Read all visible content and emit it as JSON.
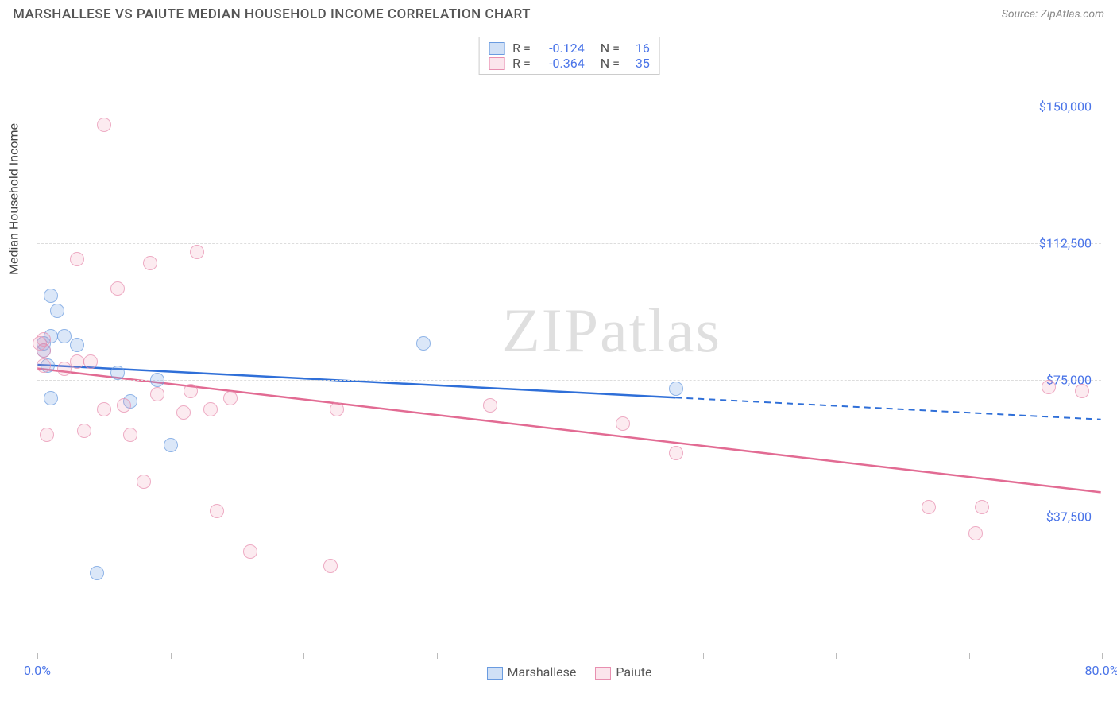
{
  "header": {
    "title": "MARSHALLESE VS PAIUTE MEDIAN HOUSEHOLD INCOME CORRELATION CHART",
    "source": "Source: ZipAtlas.com"
  },
  "watermark": {
    "part1": "ZIP",
    "part2": "atlas"
  },
  "chart": {
    "type": "scatter",
    "y_axis_title": "Median Household Income",
    "background_color": "#ffffff",
    "grid_color": "#dddddd",
    "axis_color": "#bbbbbb",
    "label_color": "#4a74e8",
    "xlim": [
      0,
      80
    ],
    "ylim": [
      0,
      170000
    ],
    "x_ticks": [
      0,
      10,
      20,
      30,
      40,
      50,
      60,
      70,
      80
    ],
    "x_tick_labels_shown": {
      "0": "0.0%",
      "80": "80.0%"
    },
    "y_gridlines": [
      37500,
      75000,
      112500,
      150000
    ],
    "y_tick_labels": {
      "37500": "$37,500",
      "75000": "$75,000",
      "112500": "$112,500",
      "150000": "$150,000"
    },
    "series": [
      {
        "name": "Marshallese",
        "color_fill": "rgba(120,165,230,0.35)",
        "color_border": "#6a9be0",
        "line_color": "#2f6fd8",
        "R": "-0.124",
        "N": "16",
        "points": [
          [
            1.0,
            98000
          ],
          [
            1.5,
            94000
          ],
          [
            1.0,
            87000
          ],
          [
            2.0,
            87000
          ],
          [
            3.0,
            84500
          ],
          [
            0.5,
            85000
          ],
          [
            1.0,
            70000
          ],
          [
            0.8,
            79000
          ],
          [
            6.0,
            77000
          ],
          [
            9.0,
            75000
          ],
          [
            29.0,
            85000
          ],
          [
            48.0,
            72500
          ],
          [
            7.0,
            69000
          ],
          [
            10.0,
            57000
          ],
          [
            4.5,
            22000
          ],
          [
            0.5,
            83000
          ]
        ],
        "trend": {
          "x1": 0,
          "y1": 79000,
          "x2": 80,
          "y2": 64000,
          "solid_until_x": 48
        }
      },
      {
        "name": "Paiute",
        "color_fill": "rgba(240,150,180,0.25)",
        "color_border": "#e88fb0",
        "line_color": "#e26b93",
        "R": "-0.364",
        "N": "35",
        "points": [
          [
            5.0,
            145000
          ],
          [
            3.0,
            108000
          ],
          [
            8.5,
            107000
          ],
          [
            12.0,
            110000
          ],
          [
            6.0,
            100000
          ],
          [
            0.5,
            86000
          ],
          [
            0.5,
            83000
          ],
          [
            0.5,
            79000
          ],
          [
            0.2,
            85000
          ],
          [
            2.0,
            78000
          ],
          [
            3.0,
            80000
          ],
          [
            4.0,
            80000
          ],
          [
            5.0,
            67000
          ],
          [
            3.5,
            61000
          ],
          [
            6.5,
            68000
          ],
          [
            7.0,
            60000
          ],
          [
            8.0,
            47000
          ],
          [
            9.0,
            71000
          ],
          [
            11.5,
            72000
          ],
          [
            11.0,
            66000
          ],
          [
            13.0,
            67000
          ],
          [
            14.5,
            70000
          ],
          [
            13.5,
            39000
          ],
          [
            16.0,
            28000
          ],
          [
            22.5,
            67000
          ],
          [
            22.0,
            24000
          ],
          [
            34.0,
            68000
          ],
          [
            44.0,
            63000
          ],
          [
            48.0,
            55000
          ],
          [
            67.0,
            40000
          ],
          [
            71.0,
            40000
          ],
          [
            70.5,
            33000
          ],
          [
            76.0,
            73000
          ],
          [
            78.5,
            72000
          ],
          [
            0.7,
            60000
          ]
        ],
        "trend": {
          "x1": 0,
          "y1": 78000,
          "x2": 80,
          "y2": 44000,
          "solid_until_x": 80
        }
      }
    ],
    "legend_top": {
      "r_label": "R =",
      "n_label": "N ="
    },
    "legend_bottom": {
      "items": [
        "Marshallese",
        "Paiute"
      ]
    }
  }
}
